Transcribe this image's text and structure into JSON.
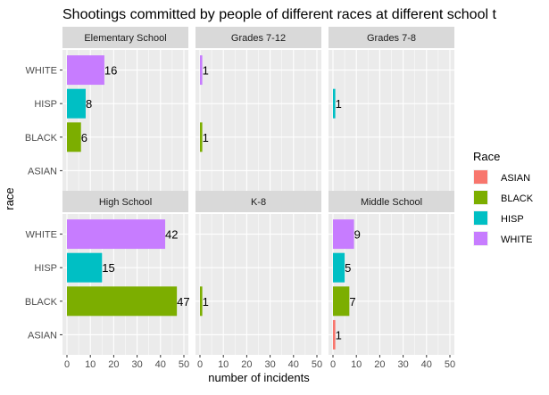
{
  "chart_data": {
    "type": "bar",
    "orientation": "horizontal",
    "faceted": true,
    "title": "Shootings committed by people of different races at different school t",
    "xlabel": "number of incidents",
    "ylabel": "race",
    "xlim": [
      0,
      50
    ],
    "x_ticks": [
      0,
      10,
      20,
      30,
      40,
      50
    ],
    "x_minor_ticks": [
      5,
      15,
      25,
      35,
      45
    ],
    "categories": [
      "ASIAN",
      "BLACK",
      "HISP",
      "WHITE"
    ],
    "grid": true,
    "legend": {
      "title": "Race",
      "position": "right",
      "entries": [
        {
          "label": "ASIAN",
          "color": "#F8766D"
        },
        {
          "label": "BLACK",
          "color": "#7CAE00"
        },
        {
          "label": "HISP",
          "color": "#00BFC4"
        },
        {
          "label": "WHITE",
          "color": "#C77CFF"
        }
      ]
    },
    "panels": [
      {
        "title": "Elementary School",
        "values": {
          "ASIAN": null,
          "BLACK": 6,
          "HISP": 8,
          "WHITE": 16
        }
      },
      {
        "title": "Grades 7-12",
        "values": {
          "ASIAN": null,
          "BLACK": 1,
          "HISP": null,
          "WHITE": 1
        }
      },
      {
        "title": "Grades 7-8",
        "values": {
          "ASIAN": null,
          "BLACK": null,
          "HISP": 1,
          "WHITE": null
        }
      },
      {
        "title": "High School",
        "values": {
          "ASIAN": null,
          "BLACK": 47,
          "HISP": 15,
          "WHITE": 42
        }
      },
      {
        "title": "K-8",
        "values": {
          "ASIAN": null,
          "BLACK": 1,
          "HISP": null,
          "WHITE": null
        }
      },
      {
        "title": "Middle School",
        "values": {
          "ASIAN": 1,
          "BLACK": 7,
          "HISP": 5,
          "WHITE": 9
        }
      }
    ],
    "colors": {
      "panel_bg": "#EBEBEB",
      "strip_bg": "#D9D9D9",
      "grid": "#FFFFFF",
      "axis_text": "#4D4D4D",
      "text": "#000000"
    }
  }
}
